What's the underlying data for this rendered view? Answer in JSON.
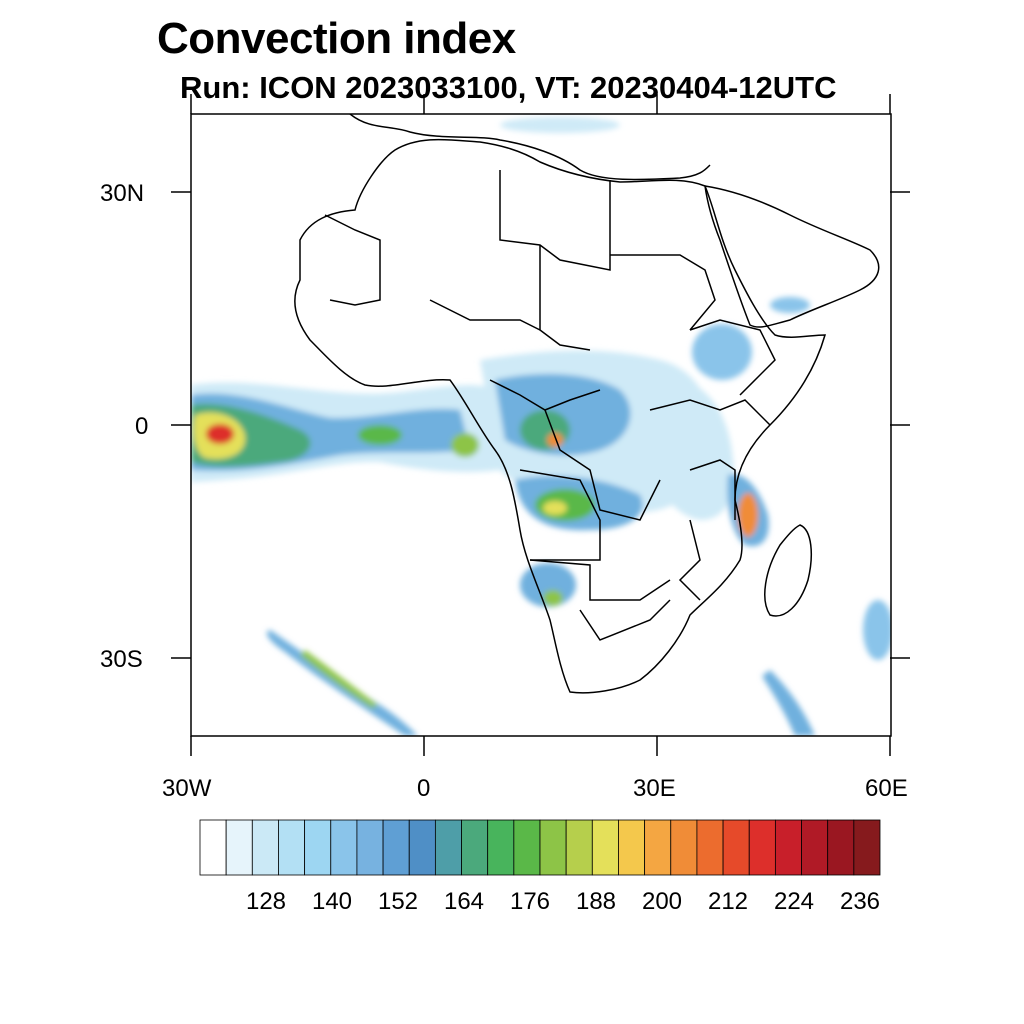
{
  "title": "Convection index",
  "subtitle": "Run: ICON 2023033100,  VT: 20230404-12UTC",
  "map": {
    "lon_range": [
      -30,
      60
    ],
    "lat_range": [
      -40,
      40
    ],
    "lon_ticks": [
      "30W",
      "0",
      "30E",
      "60E"
    ],
    "lat_ticks": [
      "30N",
      "0",
      "30S"
    ]
  },
  "colorbar": {
    "labels": [
      "128",
      "140",
      "152",
      "164",
      "176",
      "188",
      "200",
      "212",
      "224",
      "236"
    ],
    "colors": [
      "#ffffff",
      "#e6f4fb",
      "#cbe9f6",
      "#b3e0f4",
      "#9dd6f2",
      "#8ac4ea",
      "#77b2e0",
      "#5f9fd4",
      "#4f8fc6",
      "#4e9ea8",
      "#4ba97c",
      "#48b45c",
      "#5ab848",
      "#8dc447",
      "#b6cf4c",
      "#e4e05a",
      "#f4c84c",
      "#f4a642",
      "#f08c37",
      "#ec6c2e",
      "#e64a2a",
      "#dd2f2b",
      "#c81f2a",
      "#b01a26",
      "#9a1721",
      "#861a1d"
    ],
    "unit_step": 4
  },
  "fields": {
    "colors": {
      "light": "#cfeaf7",
      "blue": "#6fb0de",
      "teal": "#4ba97c",
      "green": "#5ab848",
      "yellow": "#e4e05a",
      "orange": "#f08c37",
      "red": "#dd2f2b"
    }
  }
}
